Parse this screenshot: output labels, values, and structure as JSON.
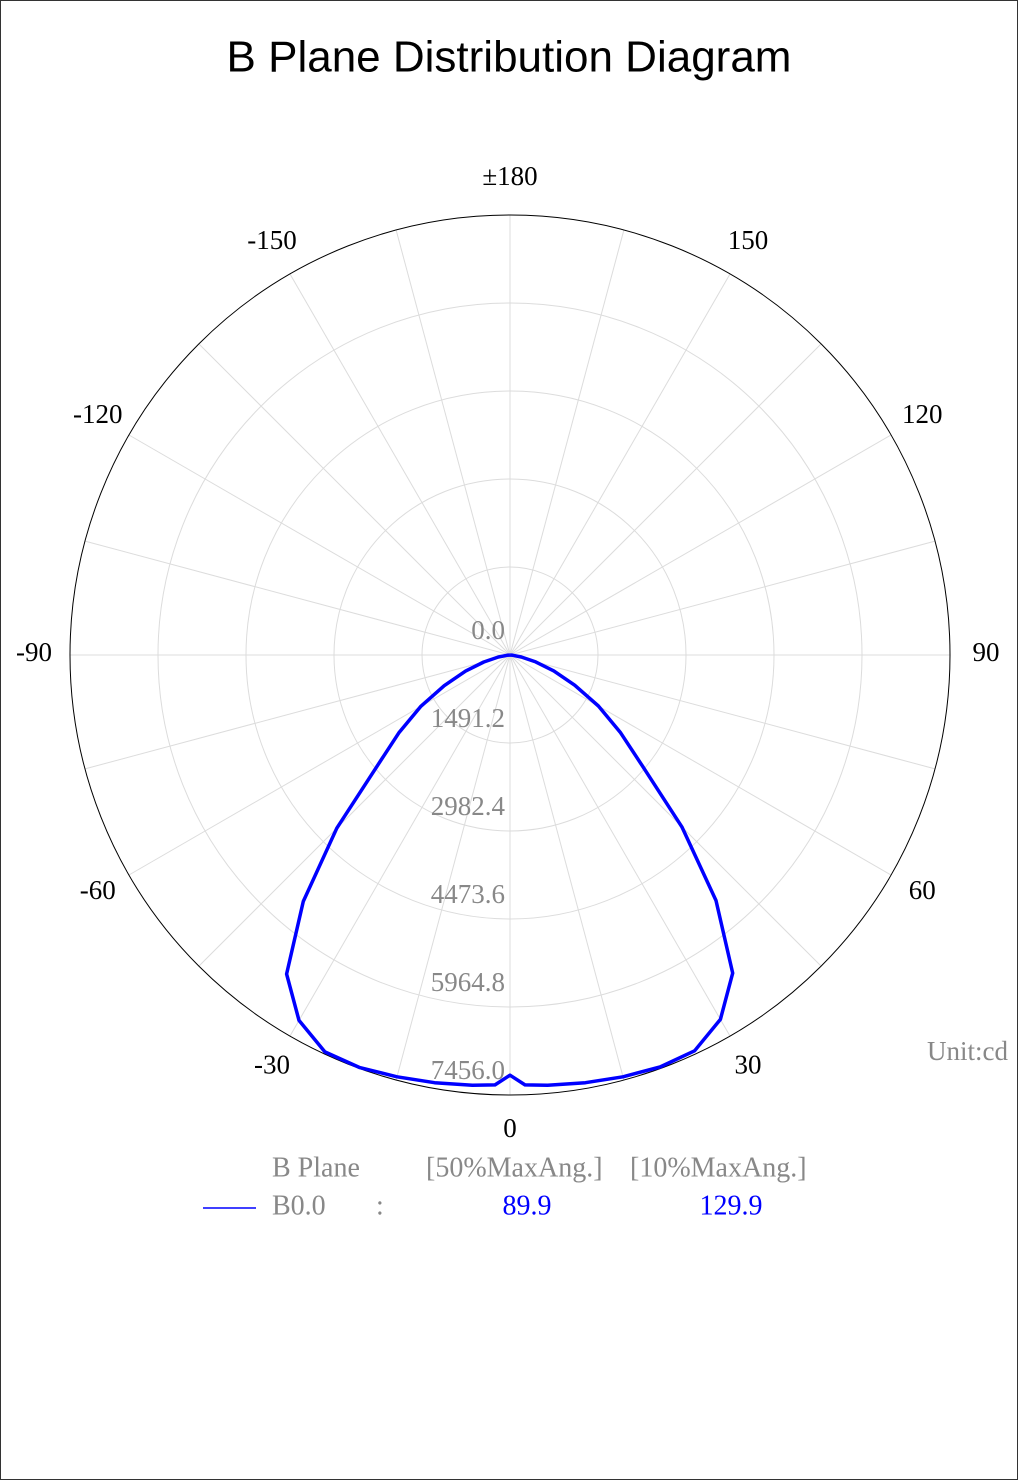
{
  "chart_data": {
    "type": "polar",
    "title": "B Plane Distribution Diagram",
    "unit_label": "Unit:cd",
    "rlim": [
      0,
      7456.0
    ],
    "rticks": [
      {
        "value": 0,
        "label": "0.0"
      },
      {
        "value": 1491.2,
        "label": "1491.2"
      },
      {
        "value": 2982.4,
        "label": "2982.4"
      },
      {
        "value": 4473.6,
        "label": "4473.6"
      },
      {
        "value": 5964.8,
        "label": "5964.8"
      },
      {
        "value": 7456.0,
        "label": "7456.0"
      }
    ],
    "thetaticks": [
      0,
      30,
      60,
      90,
      120,
      150,
      {
        "value": 180,
        "label": "±180"
      },
      -150,
      -120,
      -90,
      -60,
      -30
    ],
    "thetagrid": [
      -165,
      -150,
      -135,
      -120,
      -105,
      -90,
      -75,
      -60,
      -45,
      -30,
      -15,
      0,
      15,
      30,
      45,
      60,
      75,
      90,
      105,
      120,
      135,
      150,
      165,
      180
    ],
    "grid": true,
    "series": [
      {
        "name": "B0.0",
        "color": "#0000ff",
        "theta": [
          -90,
          -85,
          -80,
          -75,
          -70,
          -65,
          -60,
          -55,
          -50,
          -45,
          -40,
          -35,
          -30,
          -25,
          -20,
          -15,
          -10,
          -5,
          -2,
          0,
          2,
          5,
          10,
          15,
          20,
          25,
          30,
          35,
          40,
          45,
          50,
          55,
          60,
          65,
          70,
          75,
          80,
          85,
          90
        ],
        "values": [
          0,
          50,
          200,
          460,
          800,
          1230,
          1750,
          2300,
          2950,
          4150,
          5450,
          6600,
          7150,
          7420,
          7440,
          7400,
          7360,
          7320,
          7290,
          7120,
          7290,
          7320,
          7360,
          7400,
          7430,
          7400,
          7130,
          6580,
          5430,
          4120,
          2930,
          2280,
          1730,
          1210,
          790,
          450,
          195,
          50,
          0
        ]
      }
    ],
    "legend": {
      "header": [
        "B Plane",
        "[50%MaxAng.]",
        "[10%MaxAng.]"
      ],
      "separator": ":",
      "beam_angles": [
        89.9,
        129.9
      ]
    }
  }
}
